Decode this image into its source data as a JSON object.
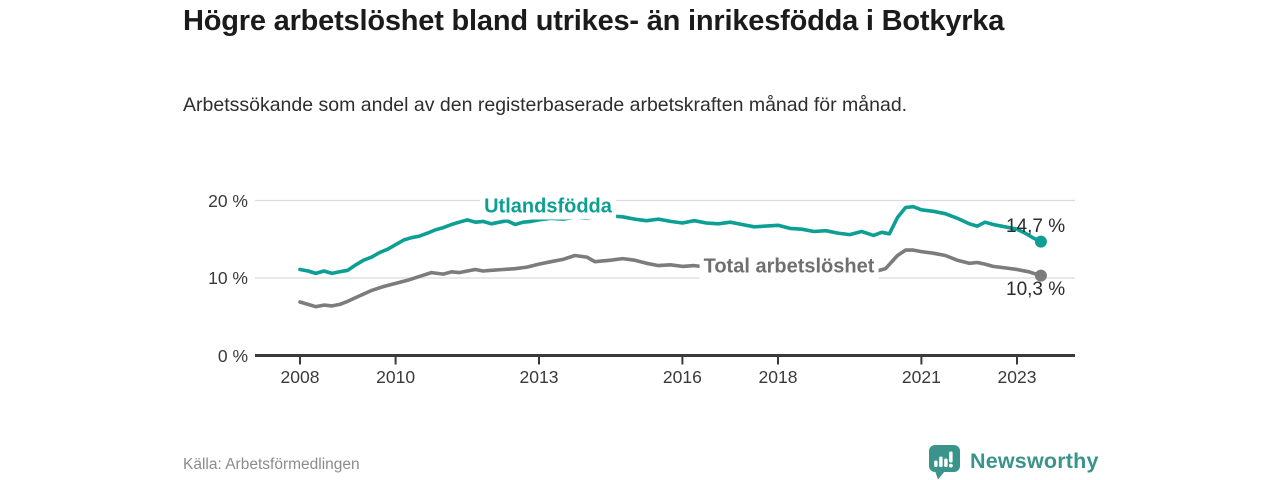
{
  "title": "Högre arbetslöshet bland utrikes- än inrikesfödda i Botkyrka",
  "subtitle": "Arbetssökande som andel av den registerbaserade arbetskraften månad för månad.",
  "source": "Källa: Arbetsförmedlingen",
  "logo": {
    "name": "Newsworthy",
    "icon": "newsworthy-bar-chart-bubble-icon",
    "color": "#3b948b"
  },
  "chart_data": {
    "type": "line",
    "title": "Högre arbetslöshet bland utrikes- än inrikesfödda i Botkyrka",
    "xlabel": "",
    "ylabel": "Arbetssökande som andel av den registerbaserade arbetskraften",
    "unit": "%",
    "xlim": [
      2007.1,
      2024.2
    ],
    "ylim": [
      0,
      22.5
    ],
    "grid": "horizontal",
    "y_gridlines": [
      10,
      20
    ],
    "legend": "inline-labels",
    "y_ticks": [
      {
        "label": "0 %",
        "value": 0
      },
      {
        "label": "10 %",
        "value": 10
      },
      {
        "label": "20 %",
        "value": 20
      }
    ],
    "x_ticks": [
      {
        "label": "2008",
        "year": 2008
      },
      {
        "label": "2010",
        "year": 2010
      },
      {
        "label": "2013",
        "year": 2013
      },
      {
        "label": "2016",
        "year": 2016
      },
      {
        "label": "2018",
        "year": 2018
      },
      {
        "label": "2021",
        "year": 2021
      },
      {
        "label": "2023",
        "year": 2023
      }
    ],
    "axis_color": "#3a3a3a",
    "gridline_color": "#dcdcdc",
    "series": [
      {
        "name": "Utlandsfödda",
        "color": "#0d9f94",
        "end_label": "14,7 %",
        "end_value": 14.7,
        "points": [
          [
            2008.0,
            11.1
          ],
          [
            2008.17,
            10.9
          ],
          [
            2008.33,
            10.6
          ],
          [
            2008.5,
            10.9
          ],
          [
            2008.67,
            10.6
          ],
          [
            2008.83,
            10.8
          ],
          [
            2009.0,
            11.0
          ],
          [
            2009.17,
            11.7
          ],
          [
            2009.33,
            12.3
          ],
          [
            2009.5,
            12.7
          ],
          [
            2009.67,
            13.3
          ],
          [
            2009.83,
            13.7
          ],
          [
            2010.0,
            14.3
          ],
          [
            2010.17,
            14.9
          ],
          [
            2010.33,
            15.2
          ],
          [
            2010.5,
            15.4
          ],
          [
            2010.67,
            15.8
          ],
          [
            2010.83,
            16.2
          ],
          [
            2011.0,
            16.5
          ],
          [
            2011.17,
            16.9
          ],
          [
            2011.33,
            17.2
          ],
          [
            2011.5,
            17.5
          ],
          [
            2011.67,
            17.2
          ],
          [
            2011.83,
            17.3
          ],
          [
            2012.0,
            17.0
          ],
          [
            2012.17,
            17.2
          ],
          [
            2012.33,
            17.4
          ],
          [
            2012.5,
            16.9
          ],
          [
            2012.67,
            17.2
          ],
          [
            2012.83,
            17.3
          ],
          [
            2013.0,
            17.5
          ],
          [
            2013.25,
            17.7
          ],
          [
            2013.5,
            17.6
          ],
          [
            2013.75,
            17.8
          ],
          [
            2014.0,
            17.7
          ],
          [
            2014.25,
            17.9
          ],
          [
            2014.5,
            18.0
          ],
          [
            2014.75,
            17.9
          ],
          [
            2015.0,
            17.6
          ],
          [
            2015.25,
            17.4
          ],
          [
            2015.5,
            17.6
          ],
          [
            2015.75,
            17.3
          ],
          [
            2016.0,
            17.1
          ],
          [
            2016.25,
            17.4
          ],
          [
            2016.5,
            17.1
          ],
          [
            2016.75,
            17.0
          ],
          [
            2017.0,
            17.2
          ],
          [
            2017.25,
            16.9
          ],
          [
            2017.5,
            16.6
          ],
          [
            2017.75,
            16.7
          ],
          [
            2018.0,
            16.8
          ],
          [
            2018.25,
            16.4
          ],
          [
            2018.5,
            16.3
          ],
          [
            2018.75,
            16.0
          ],
          [
            2019.0,
            16.1
          ],
          [
            2019.25,
            15.8
          ],
          [
            2019.5,
            15.6
          ],
          [
            2019.75,
            16.0
          ],
          [
            2020.0,
            15.5
          ],
          [
            2020.17,
            15.9
          ],
          [
            2020.33,
            15.7
          ],
          [
            2020.5,
            17.8
          ],
          [
            2020.67,
            19.1
          ],
          [
            2020.83,
            19.2
          ],
          [
            2021.0,
            18.8
          ],
          [
            2021.25,
            18.6
          ],
          [
            2021.5,
            18.3
          ],
          [
            2021.75,
            17.7
          ],
          [
            2022.0,
            17.0
          ],
          [
            2022.17,
            16.7
          ],
          [
            2022.33,
            17.2
          ],
          [
            2022.5,
            16.9
          ],
          [
            2022.75,
            16.6
          ],
          [
            2023.0,
            16.3
          ],
          [
            2023.17,
            15.8
          ],
          [
            2023.33,
            15.2
          ],
          [
            2023.5,
            14.7
          ]
        ]
      },
      {
        "name": "Total arbetslöshet",
        "color": "#7c7c7c",
        "end_label": "10,3 %",
        "end_value": 10.3,
        "points": [
          [
            2008.0,
            6.9
          ],
          [
            2008.17,
            6.6
          ],
          [
            2008.33,
            6.3
          ],
          [
            2008.5,
            6.5
          ],
          [
            2008.67,
            6.4
          ],
          [
            2008.83,
            6.6
          ],
          [
            2009.0,
            7.0
          ],
          [
            2009.25,
            7.7
          ],
          [
            2009.5,
            8.4
          ],
          [
            2009.75,
            8.9
          ],
          [
            2010.0,
            9.3
          ],
          [
            2010.25,
            9.7
          ],
          [
            2010.5,
            10.2
          ],
          [
            2010.75,
            10.7
          ],
          [
            2011.0,
            10.5
          ],
          [
            2011.17,
            10.8
          ],
          [
            2011.33,
            10.7
          ],
          [
            2011.5,
            10.9
          ],
          [
            2011.67,
            11.1
          ],
          [
            2011.83,
            10.9
          ],
          [
            2012.0,
            11.0
          ],
          [
            2012.25,
            11.1
          ],
          [
            2012.5,
            11.2
          ],
          [
            2012.75,
            11.4
          ],
          [
            2013.0,
            11.8
          ],
          [
            2013.25,
            12.1
          ],
          [
            2013.5,
            12.4
          ],
          [
            2013.75,
            12.9
          ],
          [
            2014.0,
            12.7
          ],
          [
            2014.17,
            12.1
          ],
          [
            2014.33,
            12.2
          ],
          [
            2014.5,
            12.3
          ],
          [
            2014.75,
            12.5
          ],
          [
            2015.0,
            12.3
          ],
          [
            2015.25,
            11.9
          ],
          [
            2015.5,
            11.6
          ],
          [
            2015.75,
            11.7
          ],
          [
            2016.0,
            11.5
          ],
          [
            2016.25,
            11.6
          ],
          [
            2016.5,
            11.4
          ],
          [
            2016.75,
            11.3
          ],
          [
            2017.0,
            11.2
          ],
          [
            2017.25,
            11.1
          ],
          [
            2017.5,
            11.0
          ],
          [
            2017.75,
            10.9
          ],
          [
            2018.0,
            10.8
          ],
          [
            2018.25,
            10.7
          ],
          [
            2018.5,
            10.6
          ],
          [
            2018.75,
            10.5
          ],
          [
            2019.0,
            10.4
          ],
          [
            2019.25,
            10.4
          ],
          [
            2019.5,
            10.5
          ],
          [
            2019.75,
            10.6
          ],
          [
            2020.0,
            10.8
          ],
          [
            2020.25,
            11.2
          ],
          [
            2020.5,
            12.9
          ],
          [
            2020.67,
            13.6
          ],
          [
            2020.83,
            13.6
          ],
          [
            2021.0,
            13.4
          ],
          [
            2021.25,
            13.2
          ],
          [
            2021.5,
            12.9
          ],
          [
            2021.75,
            12.3
          ],
          [
            2022.0,
            11.9
          ],
          [
            2022.17,
            12.0
          ],
          [
            2022.33,
            11.8
          ],
          [
            2022.5,
            11.5
          ],
          [
            2022.75,
            11.3
          ],
          [
            2023.0,
            11.1
          ],
          [
            2023.25,
            10.8
          ],
          [
            2023.5,
            10.3
          ]
        ]
      }
    ]
  }
}
